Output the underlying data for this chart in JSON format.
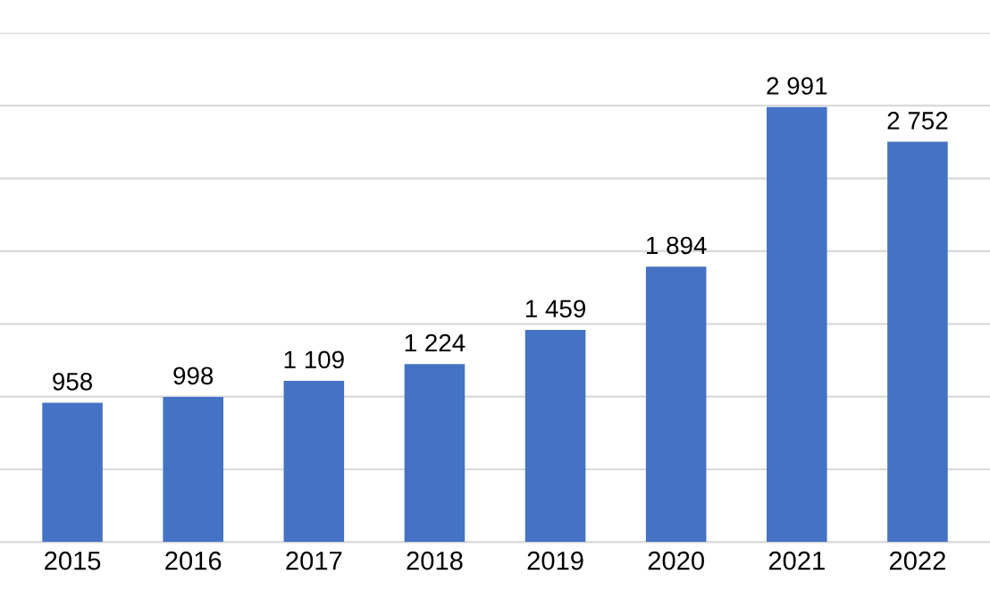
{
  "chart_data": {
    "type": "bar",
    "categories": [
      "2015",
      "2016",
      "2017",
      "2018",
      "2019",
      "2020",
      "2021",
      "2022"
    ],
    "values": [
      958,
      998,
      1109,
      1224,
      1459,
      1894,
      2991,
      2752
    ],
    "value_labels": [
      "958",
      "998",
      "1 109",
      "1 224",
      "1 459",
      "1 894",
      "2 991",
      "2 752"
    ],
    "color": "#4472c4",
    "ylim": [
      0,
      3500
    ],
    "yticks": [
      {
        "value": 0,
        "label": null
      },
      {
        "value": 500,
        "label": null
      },
      {
        "value": 1000,
        "label": null
      },
      {
        "value": 1500,
        "label": null
      },
      {
        "value": 2000,
        "label": null
      },
      {
        "value": 2500,
        "label": null
      },
      {
        "value": 3000,
        "label": null
      },
      {
        "value": 3500,
        "label": null
      }
    ],
    "grid": "y",
    "tick_labels": "x"
  }
}
